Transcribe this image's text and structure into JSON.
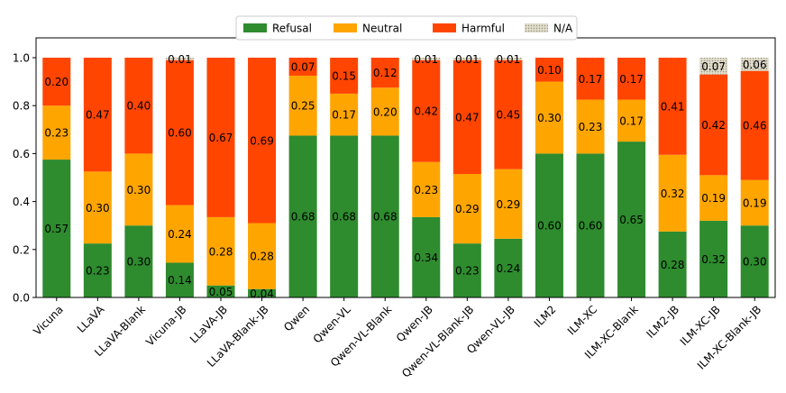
{
  "chart_data": {
    "type": "bar",
    "stacked": true,
    "categories": [
      "Vicuna",
      "LLaVA",
      "LLaVA-Blank",
      "Vicuna-JB",
      "LLaVA-JB",
      "LLaVA-Blank-JB",
      "Qwen",
      "Qwen-VL",
      "Qwen-VL-Blank",
      "Qwen-JB",
      "Qwen-VL-Blank-JB",
      "Qwen-VL-JB",
      "ILM2",
      "ILM-XC",
      "ILM-XC-Blank",
      "ILM2-JB",
      "ILM-XC-JB",
      "ILM-XC-Blank-JB"
    ],
    "series": [
      {
        "name": "Refusal",
        "color": "#2e8b2e",
        "values": [
          0.575,
          0.225,
          0.3,
          0.145,
          0.05,
          0.035,
          0.675,
          0.675,
          0.675,
          0.335,
          0.225,
          0.245,
          0.6,
          0.6,
          0.65,
          0.275,
          0.32,
          0.3
        ],
        "labels": [
          "0.57",
          "0.23",
          "0.30",
          "0.14",
          "0.05",
          "0.04",
          "0.68",
          "0.68",
          "0.68",
          "0.34",
          "0.23",
          "0.24",
          "0.60",
          "0.60",
          "0.65",
          "0.28",
          "0.32",
          "0.30"
        ]
      },
      {
        "name": "Neutral",
        "color": "#ffa500",
        "values": [
          0.225,
          0.3,
          0.3,
          0.24,
          0.285,
          0.275,
          0.25,
          0.175,
          0.2,
          0.23,
          0.29,
          0.29,
          0.3,
          0.225,
          0.175,
          0.32,
          0.19,
          0.19
        ],
        "labels": [
          "0.23",
          "0.30",
          "0.30",
          "0.24",
          "0.28",
          "0.28",
          "0.25",
          "0.17",
          "0.20",
          "0.23",
          "0.29",
          "0.29",
          "0.30",
          "0.23",
          "0.17",
          "0.32",
          "0.19",
          "0.19"
        ]
      },
      {
        "name": "Harmful",
        "color": "#ff4500",
        "values": [
          0.2,
          0.475,
          0.4,
          0.605,
          0.665,
          0.69,
          0.075,
          0.15,
          0.125,
          0.425,
          0.475,
          0.455,
          0.1,
          0.175,
          0.175,
          0.405,
          0.42,
          0.455
        ],
        "labels": [
          "0.20",
          "0.47",
          "0.40",
          "0.60",
          "0.67",
          "0.69",
          "0.07",
          "0.15",
          "0.12",
          "0.42",
          "0.47",
          "0.45",
          "0.10",
          "0.17",
          "0.17",
          "0.41",
          "0.42",
          "0.46"
        ]
      },
      {
        "name": "N/A",
        "color": "#d8d2b8",
        "values": [
          0,
          0,
          0,
          0.01,
          0,
          0,
          0,
          0,
          0,
          0.01,
          0.01,
          0.01,
          0,
          0,
          0,
          0,
          0.07,
          0.055
        ],
        "labels": [
          "",
          "",
          "",
          "0.01",
          "",
          "",
          "",
          "",
          "",
          "0.01",
          "0.01",
          "0.01",
          "",
          "",
          "",
          "",
          "0.07",
          "0.06"
        ]
      }
    ],
    "yticks": [
      "0.0",
      "0.2",
      "0.4",
      "0.6",
      "0.8",
      "1.0"
    ],
    "ylim": [
      0,
      1.0
    ],
    "title": "",
    "xlabel": "",
    "ylabel": "",
    "legend_position": "top-center",
    "grid": false
  }
}
